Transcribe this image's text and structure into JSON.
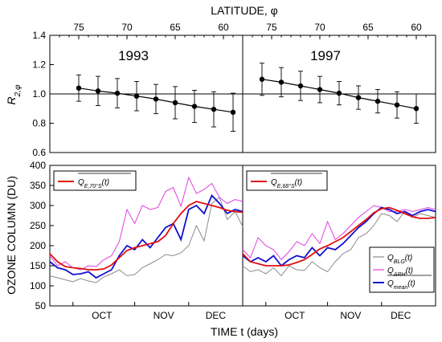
{
  "colors": {
    "red": "#e01010",
    "gray": "#8c8c8c",
    "magenta": "#e040e0",
    "blue": "#1010d0",
    "black": "#000000"
  },
  "chart_data": [
    {
      "type": "scatter",
      "panel": "top-left",
      "title": "1993",
      "top_axis_label": "LATITUDE, φ",
      "ylabel": "R2,φ",
      "ylim": [
        0.6,
        1.4
      ],
      "yticks": [
        "0.6",
        "0.8",
        "1.0",
        "1.2",
        "1.4"
      ],
      "xlim": [
        78,
        58
      ],
      "xticks": [
        "75",
        "70",
        "65",
        "60"
      ],
      "reference_line": 1.0,
      "x": [
        75,
        73,
        71,
        69,
        67,
        65,
        63,
        61,
        59
      ],
      "y": [
        1.04,
        1.02,
        1.005,
        0.985,
        0.965,
        0.94,
        0.915,
        0.895,
        0.875
      ],
      "error": [
        0.09,
        0.1,
        0.1,
        0.1,
        0.1,
        0.11,
        0.11,
        0.12,
        0.13
      ]
    },
    {
      "type": "scatter",
      "panel": "top-right",
      "title": "1997",
      "top_axis_label": "LATITUDE, φ",
      "xlim": [
        78,
        58
      ],
      "xticks": [
        "75",
        "70",
        "65",
        "60"
      ],
      "reference_line": 1.0,
      "x": [
        76,
        74,
        72,
        70,
        68,
        66,
        64,
        62,
        60
      ],
      "y": [
        1.1,
        1.08,
        1.055,
        1.03,
        1.005,
        0.975,
        0.95,
        0.925,
        0.9
      ],
      "error": [
        0.11,
        0.1,
        0.1,
        0.09,
        0.08,
        0.08,
        0.08,
        0.09,
        0.1
      ]
    },
    {
      "type": "line",
      "panel": "bottom-left",
      "ylabel": "OZONE COLUMN  (DU)",
      "xlabel": "TIME t (days)",
      "ylim": [
        50,
        400
      ],
      "yticks": [
        "50",
        "100",
        "150",
        "200",
        "250",
        "300",
        "350",
        "400"
      ],
      "xlim": [
        0,
        100
      ],
      "month_labels": [
        {
          "label": "OCT",
          "x": 27
        },
        {
          "label": "NOV",
          "x": 59
        },
        {
          "label": "DEC",
          "x": 86
        }
      ],
      "legend": [
        {
          "name": "QE,70°S(t)",
          "color": "red"
        }
      ],
      "x": [
        0,
        4,
        8,
        12,
        16,
        20,
        24,
        28,
        32,
        36,
        40,
        44,
        48,
        52,
        56,
        60,
        64,
        68,
        72,
        76,
        80,
        84,
        88,
        92,
        96,
        100
      ],
      "series": [
        {
          "name": "QBLG(t)",
          "color": "gray",
          "values": [
            125,
            120,
            115,
            110,
            118,
            112,
            108,
            122,
            130,
            140,
            125,
            128,
            145,
            155,
            165,
            178,
            175,
            182,
            200,
            250,
            212,
            305,
            320,
            265,
            285,
            248
          ]
        },
        {
          "name": "QARH(t)",
          "color": "magenta",
          "values": [
            175,
            150,
            160,
            145,
            140,
            150,
            148,
            165,
            175,
            210,
            290,
            255,
            300,
            290,
            295,
            335,
            345,
            298,
            370,
            330,
            340,
            355,
            320,
            305,
            315,
            310
          ]
        },
        {
          "name": "Qmean(t)",
          "color": "blue",
          "values": [
            160,
            145,
            140,
            128,
            130,
            135,
            120,
            130,
            140,
            175,
            200,
            190,
            215,
            195,
            220,
            245,
            255,
            215,
            290,
            300,
            280,
            325,
            305,
            280,
            290,
            285
          ]
        },
        {
          "name": "QE,70°S(t)",
          "color": "red",
          "values": [
            180,
            160,
            148,
            145,
            143,
            140,
            140,
            142,
            152,
            170,
            188,
            195,
            200,
            205,
            210,
            225,
            255,
            280,
            300,
            310,
            305,
            300,
            295,
            288,
            285,
            283
          ]
        }
      ]
    },
    {
      "type": "line",
      "panel": "bottom-right",
      "xlim": [
        0,
        100
      ],
      "ylim": [
        50,
        400
      ],
      "month_labels": [
        {
          "label": "OCT",
          "x": 27
        },
        {
          "label": "NOV",
          "x": 56
        },
        {
          "label": "DEC",
          "x": 82
        }
      ],
      "legend": [
        {
          "name": "QE,68°S(t)",
          "color": "red"
        },
        {
          "name": "QBLG(t)",
          "color": "gray"
        },
        {
          "name": "QARH(t)",
          "color": "magenta"
        },
        {
          "name": "Qmean(t)",
          "color": "blue"
        }
      ],
      "x": [
        0,
        4,
        8,
        12,
        16,
        20,
        24,
        28,
        32,
        36,
        40,
        44,
        48,
        52,
        56,
        60,
        64,
        68,
        72,
        76,
        80,
        84,
        88,
        92,
        96,
        100
      ],
      "series": [
        {
          "name": "QBLG(t)",
          "color": "gray",
          "values": [
            150,
            135,
            140,
            130,
            145,
            125,
            150,
            140,
            138,
            160,
            145,
            135,
            160,
            180,
            190,
            220,
            230,
            250,
            280,
            275,
            260,
            285,
            270,
            280,
            275,
            270
          ]
        },
        {
          "name": "QARH(t)",
          "color": "magenta",
          "values": [
            190,
            170,
            220,
            200,
            190,
            165,
            185,
            210,
            200,
            230,
            205,
            260,
            215,
            230,
            250,
            270,
            285,
            300,
            295,
            285,
            285,
            290,
            285,
            290,
            295,
            290
          ]
        },
        {
          "name": "Qmean(t)",
          "color": "blue",
          "values": [
            175,
            160,
            170,
            160,
            175,
            150,
            165,
            175,
            170,
            195,
            175,
            195,
            190,
            205,
            225,
            245,
            260,
            280,
            295,
            290,
            280,
            285,
            275,
            285,
            290,
            285
          ]
        },
        {
          "name": "QE,68°S(t)",
          "color": "red",
          "values": [
            180,
            160,
            155,
            150,
            150,
            150,
            152,
            158,
            165,
            178,
            192,
            200,
            210,
            220,
            235,
            250,
            265,
            282,
            292,
            295,
            288,
            280,
            272,
            268,
            268,
            270
          ]
        }
      ]
    }
  ],
  "legend_labels": {
    "left_red": "Q",
    "left_red_sub": "E,70°S",
    "left_red_arg": "(t)",
    "right_red": "Q",
    "right_red_sub": "E,68°S",
    "right_red_arg": "(t)",
    "gray": "Q",
    "gray_sub": "BLG",
    "gray_arg": "(t)",
    "magenta": "Q",
    "magenta_sub": "ARH",
    "magenta_arg": "(t)",
    "blue": "Q",
    "blue_sub": "mean",
    "blue_arg": "(t)"
  }
}
